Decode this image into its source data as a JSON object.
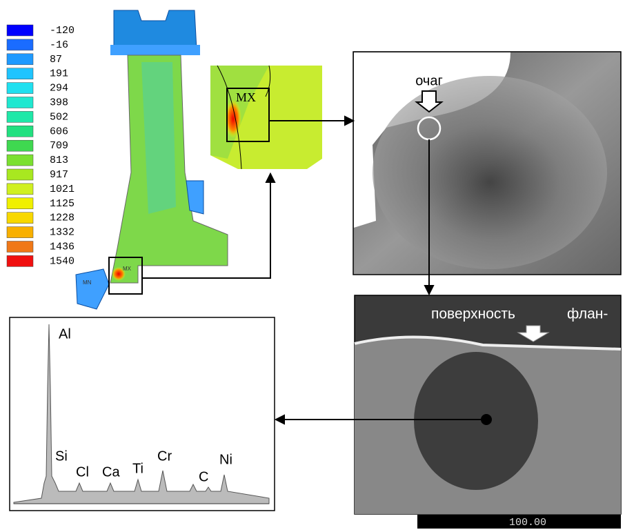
{
  "legend": {
    "values": [
      -120,
      -16,
      87,
      191,
      294,
      398,
      502,
      606,
      709,
      813,
      917,
      1021,
      1125,
      1228,
      1332,
      1436,
      1540
    ],
    "colors": [
      "#0000ff",
      "#1a6cff",
      "#1f9aff",
      "#1fc4ff",
      "#1fe0f0",
      "#1fe8d0",
      "#1fe8a8",
      "#22e080",
      "#3fd850",
      "#7be030",
      "#a8e820",
      "#d0f020",
      "#f0f000",
      "#f8d800",
      "#f8b000",
      "#f07818",
      "#f01010"
    ]
  },
  "fea": {
    "max_label": "MX",
    "min_label": "MN"
  },
  "fracture": {
    "origin_label": "очаг"
  },
  "sem": {
    "surface_label": "поверхность",
    "flange_label": "флан-",
    "scale_label": "100.00"
  },
  "spectrum": {
    "peaks": [
      "Al",
      "Si",
      "Cl",
      "Ca",
      "Ti",
      "Cr",
      "C",
      "Ni"
    ]
  }
}
